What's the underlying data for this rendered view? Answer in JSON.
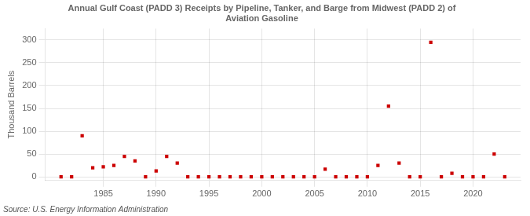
{
  "chart_data": {
    "type": "scatter",
    "title": "Annual Gulf Coast (PADD 3) Receipts by Pipeline, Tanker, and Barge from Midwest (PADD 2) of\nAviation Gasoline",
    "ylabel": "Thousand Barrels",
    "source": "Source: U.S. Energy Information Administration",
    "x": [
      1981,
      1982,
      1983,
      1984,
      1985,
      1986,
      1987,
      1988,
      1989,
      1990,
      1991,
      1992,
      1993,
      1994,
      1995,
      1996,
      1997,
      1998,
      1999,
      2000,
      2001,
      2002,
      2003,
      2004,
      2005,
      2006,
      2007,
      2008,
      2009,
      2010,
      2011,
      2012,
      2013,
      2014,
      2015,
      2016,
      2017,
      2018,
      2019,
      2020,
      2021,
      2022,
      2023
    ],
    "values": [
      0,
      0,
      90,
      20,
      22,
      25,
      45,
      35,
      0,
      13,
      45,
      30,
      0,
      0,
      0,
      0,
      0,
      0,
      0,
      0,
      0,
      0,
      0,
      0,
      0,
      17,
      0,
      0,
      0,
      0,
      25,
      155,
      30,
      0,
      0,
      295,
      0,
      8,
      0,
      0,
      0,
      50,
      0
    ],
    "color": "#cc0000",
    "marker": "square",
    "xlim": [
      1979.5,
      2024.5
    ],
    "xticks": [
      1985,
      1990,
      1995,
      2000,
      2005,
      2010,
      2015,
      2020
    ],
    "ylim": [
      -8,
      325
    ],
    "yticks": [
      0,
      50,
      100,
      150,
      200,
      250,
      300
    ],
    "grid": true
  }
}
